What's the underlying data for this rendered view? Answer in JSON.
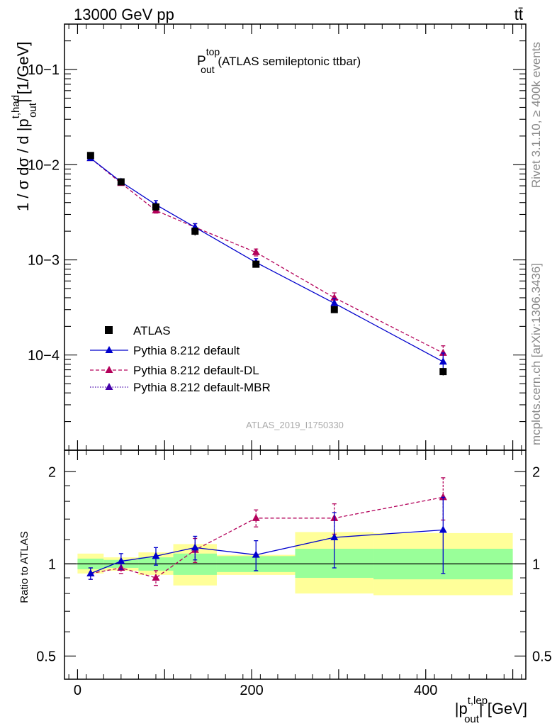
{
  "header": {
    "left": "13000 GeV pp",
    "right": "tt̄"
  },
  "side_labels": {
    "rivet": "Rivet 3.1.10, ≥ 400k events",
    "mcplots": "mcplots.cern.ch [arXiv:1306.3436]"
  },
  "watermark": "ATLAS_2019_I1750330",
  "colors": {
    "data": "#000000",
    "default": "#0000cc",
    "dl": "#b3005a",
    "mbr": "#4400aa",
    "band_stat": "#99ff99",
    "band_total": "#ffff99"
  },
  "chart_data": [
    {
      "type": "scatter",
      "title": "P_out^top (ATLAS semileptonic ttbar)",
      "title_parts": {
        "main": "P",
        "sup": "top",
        "sub": "out",
        "rest": " (ATLAS semileptonic ttbar)"
      },
      "ylabel": "1 / σ dσ / d |p_out^t,had| [1/GeV]",
      "ylabel_parts": {
        "main": "1 / σ dσ / d |p",
        "sup": "t,had",
        "sub": "out",
        "rest": "| [1/GeV]"
      },
      "yscale": "log",
      "ylim": [
        1e-05,
        0.3
      ],
      "xlim": [
        -15,
        515
      ],
      "ytick_labels": [
        "10−4",
        "10−3",
        "10−2",
        "10−1"
      ],
      "ytick_values": [
        0.0001,
        0.001,
        0.01,
        0.1
      ],
      "bins": [
        [
          0,
          30
        ],
        [
          30,
          70
        ],
        [
          70,
          110
        ],
        [
          110,
          160
        ],
        [
          160,
          250
        ],
        [
          250,
          340
        ],
        [
          340,
          500
        ]
      ],
      "series": [
        {
          "name": "ATLAS",
          "style": "marker-square",
          "x": [
            15,
            50,
            90,
            135,
            205,
            295,
            420
          ],
          "values": [
            0.0125,
            0.0066,
            0.0036,
            0.002,
            0.0009,
            0.0003,
            6.7e-05
          ],
          "err": [
            0.0005,
            0.0003,
            0.0003,
            0.0002,
            7e-05,
            2e-05,
            6e-06
          ]
        },
        {
          "name": "Pythia 8.212 default",
          "style": "solid",
          "x": [
            15,
            50,
            90,
            135,
            205,
            295,
            420
          ],
          "values": [
            0.0117,
            0.0066,
            0.0038,
            0.0022,
            0.00094,
            0.00035,
            8.5e-05
          ],
          "err": [
            0.0005,
            0.0003,
            0.0004,
            0.0002,
            9e-05,
            4e-05,
            2e-05
          ]
        },
        {
          "name": "Pythia 8.212 default-DL",
          "style": "dashed",
          "x": [
            15,
            50,
            90,
            135,
            205,
            295,
            420
          ],
          "values": [
            0.0117,
            0.0064,
            0.0033,
            0.0022,
            0.0012,
            0.0004,
            0.000105
          ],
          "err": [
            0.0005,
            0.0003,
            0.0002,
            0.0002,
            0.0001,
            5e-05,
            2e-05
          ]
        },
        {
          "name": "Pythia 8.212 default-MBR",
          "style": "dotted",
          "x": [],
          "values": [],
          "err": []
        }
      ]
    },
    {
      "type": "scatter",
      "ylabel": "Ratio to ATLAS",
      "xlabel": "|p_out^t,lep| [GeV]",
      "xlabel_parts": {
        "main": "|p",
        "sup": "t,lep",
        "sub": "out",
        "rest": "| [GeV]"
      },
      "yscale": "log",
      "ylim": [
        0.42,
        2.35
      ],
      "xlim": [
        -15,
        515
      ],
      "ytick_labels": [
        "0.5",
        "1",
        "2"
      ],
      "ytick_values": [
        0.5,
        1,
        2
      ],
      "xtick_labels": [
        "0",
        "200",
        "400"
      ],
      "xtick_values": [
        0,
        200,
        400
      ],
      "bands": {
        "stat": [
          [
            0.96,
            1.04
          ],
          [
            0.97,
            1.03
          ],
          [
            0.95,
            1.05
          ],
          [
            0.92,
            1.08
          ],
          [
            0.94,
            1.06
          ],
          [
            0.9,
            1.12
          ],
          [
            0.89,
            1.12
          ]
        ],
        "total": [
          [
            0.93,
            1.08
          ],
          [
            0.95,
            1.05
          ],
          [
            0.92,
            1.09
          ],
          [
            0.85,
            1.16
          ],
          [
            0.92,
            1.07
          ],
          [
            0.8,
            1.27
          ],
          [
            0.79,
            1.26
          ]
        ]
      },
      "series": [
        {
          "name": "Pythia 8.212 default",
          "x": [
            15,
            50,
            90,
            135,
            205,
            295,
            420
          ],
          "values": [
            0.93,
            1.02,
            1.06,
            1.13,
            1.07,
            1.22,
            1.29
          ],
          "err": [
            0.04,
            0.06,
            0.07,
            0.1,
            0.12,
            0.25,
            0.36
          ]
        },
        {
          "name": "Pythia 8.212 default-DL",
          "x": [
            15,
            50,
            90,
            135,
            205,
            295,
            420
          ],
          "values": [
            0.93,
            0.97,
            0.9,
            1.11,
            1.41,
            1.41,
            1.65
          ],
          "err": [
            0.04,
            0.04,
            0.05,
            0.1,
            0.09,
            0.16,
            0.26
          ]
        }
      ]
    }
  ]
}
